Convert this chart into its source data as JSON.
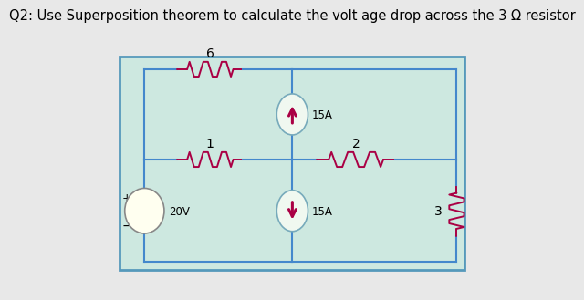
{
  "title": "Q2: Use Superposition theorem to calculate the volt age drop across the 3 Ω resistor",
  "title_fontsize": 10.5,
  "bg_color": "#cde8e0",
  "fig_bg": "#e8e8e8",
  "resistor_color": "#aa0044",
  "wire_color": "#4488cc",
  "box_edge_color": "#5599bb"
}
